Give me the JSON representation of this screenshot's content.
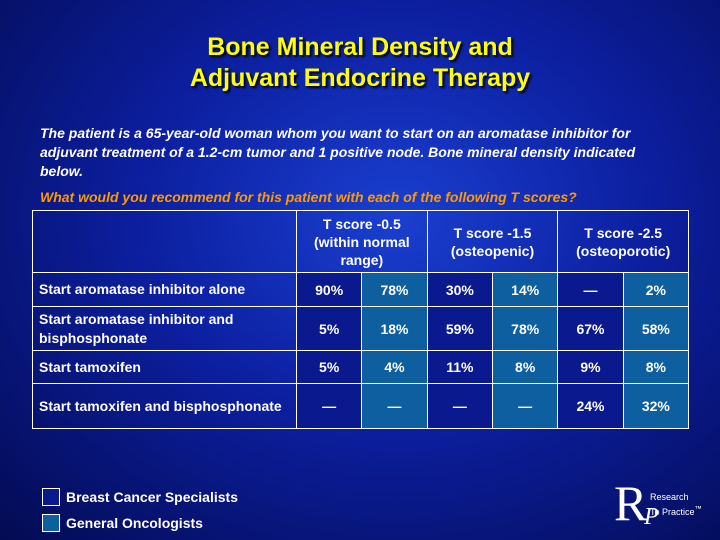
{
  "title": {
    "line1": "Bone Mineral Density and",
    "line2": "Adjuvant Endocrine Therapy"
  },
  "intro": "The patient is a 65-year-old woman whom you want to start on an aromatase inhibitor for adjuvant treatment of a 1.2-cm tumor and 1 positive node. Bone mineral density indicated below.",
  "question": "What would you recommend for this patient with each of the following T scores?",
  "table": {
    "headers": [
      {
        "line1": "T score -0.5",
        "line2": "(within normal",
        "line3": "range)"
      },
      {
        "line1": "T score -1.5",
        "line2": "(osteopenic)"
      },
      {
        "line1": "T score -2.5",
        "line2": "(osteoporotic)"
      }
    ],
    "rows": [
      {
        "label": "Start aromatase inhibitor alone",
        "values": [
          "90%",
          "78%",
          "30%",
          "14%",
          "—",
          "2%"
        ]
      },
      {
        "label": "Start aromatase inhibitor and bisphosphonate",
        "values": [
          "5%",
          "18%",
          "59%",
          "78%",
          "67%",
          "58%"
        ]
      },
      {
        "label": "Start tamoxifen",
        "values": [
          "5%",
          "4%",
          "11%",
          "8%",
          "9%",
          "8%"
        ]
      },
      {
        "label": "Start tamoxifen and bisphosphonate",
        "values": [
          "—",
          "—",
          "—",
          "—",
          "24%",
          "32%"
        ]
      }
    ]
  },
  "legend": [
    {
      "label": "Breast Cancer Specialists",
      "color": "#0a1a8e"
    },
    {
      "label": "General Oncologists",
      "color": "#0d5fa0"
    }
  ],
  "logo": {
    "letter_r": "R",
    "letter_p": "P",
    "line1": "Research",
    "line2": "To Practice",
    "mark": "™"
  }
}
